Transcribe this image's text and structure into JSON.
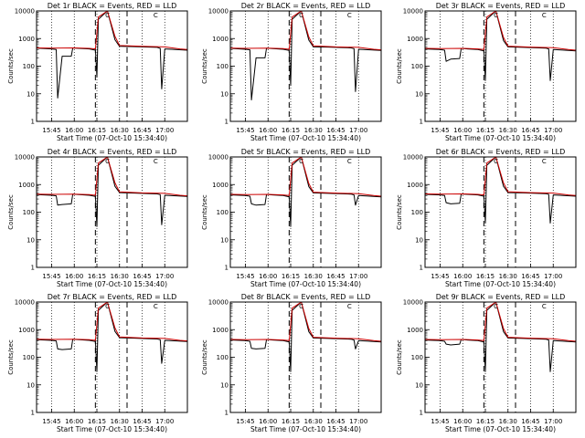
{
  "chart_data": [
    {
      "type": "line",
      "title": "Det 1r BLACK = Events, RED = LLD",
      "xlabel": "Start Time (07-Oct-10 15:34:40)",
      "ylabel": "Counts/sec",
      "y_scale": "log",
      "ylim": [
        1,
        10000
      ],
      "xlim": [
        "15:35",
        "17:15"
      ],
      "x_ticks": [
        "15:45",
        "16:00",
        "16:15",
        "16:30",
        "16:45",
        "17:00"
      ],
      "y_ticks": [
        "1",
        "10",
        "100",
        "1000",
        "10000"
      ],
      "marker": "C",
      "series": [
        {
          "color": "#000000",
          "x": [
            "15:35",
            "15:45",
            "15:48",
            "15:49",
            "15:52",
            "15:58",
            "15:59",
            "16:03",
            "16:10",
            "16:14",
            "16:15",
            "16:16",
            "16:22",
            "16:27",
            "16:30",
            "16:40",
            "16:55",
            "16:57",
            "16:58",
            "17:00",
            "17:15"
          ],
          "y": [
            450,
            420,
            400,
            7,
            230,
            230,
            460,
            440,
            420,
            380,
            40,
            5000,
            10000,
            900,
            520,
            510,
            480,
            440,
            15,
            420,
            380
          ]
        },
        {
          "color": "#cc0000",
          "x": [
            "15:35",
            "15:45",
            "16:00",
            "16:10",
            "16:14",
            "16:16",
            "16:22",
            "16:27",
            "16:30",
            "16:45",
            "17:00",
            "17:10",
            "17:15"
          ],
          "y": [
            460,
            450,
            460,
            440,
            420,
            6000,
            10000,
            1200,
            560,
            520,
            500,
            420,
            400
          ]
        }
      ]
    },
    {
      "type": "line",
      "title": "Det 2r BLACK = Events, RED = LLD",
      "xlabel": "Start Time (07-Oct-10 15:34:40)",
      "ylabel": "Counts/sec",
      "y_scale": "log",
      "ylim": [
        1,
        10000
      ],
      "xlim": [
        "15:35",
        "17:15"
      ],
      "x_ticks": [
        "15:45",
        "16:00",
        "16:15",
        "16:30",
        "16:45",
        "17:00"
      ],
      "y_ticks": [
        "1",
        "10",
        "100",
        "1000",
        "10000"
      ],
      "marker": "C",
      "series": [
        {
          "color": "#000000",
          "x": [
            "15:35",
            "15:45",
            "15:48",
            "15:49",
            "15:52",
            "15:58",
            "15:59",
            "16:03",
            "16:10",
            "16:14",
            "16:15",
            "16:16",
            "16:22",
            "16:27",
            "16:30",
            "16:40",
            "16:55",
            "16:57",
            "16:58",
            "17:00",
            "17:15"
          ],
          "y": [
            440,
            410,
            390,
            6,
            200,
            200,
            450,
            430,
            410,
            370,
            20,
            5000,
            10000,
            880,
            500,
            490,
            460,
            430,
            12,
            410,
            370
          ]
        },
        {
          "color": "#cc0000",
          "x": [
            "15:35",
            "15:45",
            "16:00",
            "16:10",
            "16:14",
            "16:16",
            "16:22",
            "16:27",
            "16:30",
            "16:45",
            "17:00",
            "17:10",
            "17:15"
          ],
          "y": [
            450,
            440,
            450,
            430,
            410,
            6000,
            10000,
            1150,
            540,
            500,
            480,
            410,
            390
          ]
        }
      ]
    },
    {
      "type": "line",
      "title": "Det 3r BLACK = Events, RED = LLD",
      "xlabel": "Start Time (07-Oct-10 15:34:40)",
      "ylabel": "Counts/sec",
      "y_scale": "log",
      "ylim": [
        1,
        10000
      ],
      "xlim": [
        "15:35",
        "17:15"
      ],
      "x_ticks": [
        "15:45",
        "16:00",
        "16:15",
        "16:30",
        "16:45",
        "17:00"
      ],
      "y_ticks": [
        "1",
        "10",
        "100",
        "1000",
        "10000"
      ],
      "marker": "C",
      "series": [
        {
          "color": "#000000",
          "x": [
            "15:35",
            "15:45",
            "15:48",
            "15:49",
            "15:52",
            "15:58",
            "15:59",
            "16:03",
            "16:10",
            "16:14",
            "16:15",
            "16:16",
            "16:22",
            "16:27",
            "16:30",
            "16:40",
            "16:55",
            "16:57",
            "16:58",
            "17:00",
            "17:15"
          ],
          "y": [
            420,
            400,
            380,
            150,
            180,
            190,
            440,
            420,
            400,
            360,
            30,
            5000,
            10000,
            850,
            500,
            480,
            450,
            420,
            30,
            400,
            360
          ]
        },
        {
          "color": "#cc0000",
          "x": [
            "15:35",
            "15:45",
            "16:00",
            "16:10",
            "16:14",
            "16:16",
            "16:22",
            "16:27",
            "16:30",
            "16:45",
            "17:00",
            "17:10",
            "17:15"
          ],
          "y": [
            440,
            430,
            440,
            420,
            400,
            6000,
            10000,
            1100,
            530,
            490,
            470,
            400,
            380
          ]
        }
      ]
    },
    {
      "type": "line",
      "title": "Det 4r BLACK = Events, RED = LLD",
      "xlabel": "Start Time (07-Oct-10 15:34:40)",
      "ylabel": "Counts/sec",
      "y_scale": "log",
      "ylim": [
        1,
        10000
      ],
      "xlim": [
        "15:35",
        "17:15"
      ],
      "x_ticks": [
        "15:45",
        "16:00",
        "16:15",
        "16:30",
        "16:45",
        "17:00"
      ],
      "y_ticks": [
        "1",
        "10",
        "100",
        "1000",
        "10000"
      ],
      "marker": "C",
      "series": [
        {
          "color": "#000000",
          "x": [
            "15:35",
            "15:45",
            "15:48",
            "15:49",
            "15:52",
            "15:58",
            "15:59",
            "16:03",
            "16:10",
            "16:14",
            "16:15",
            "16:16",
            "16:22",
            "16:27",
            "16:30",
            "16:40",
            "16:55",
            "16:57",
            "16:58",
            "17:00",
            "17:15"
          ],
          "y": [
            430,
            410,
            390,
            180,
            190,
            200,
            450,
            430,
            410,
            370,
            30,
            5000,
            10000,
            860,
            510,
            490,
            460,
            430,
            35,
            410,
            370
          ]
        },
        {
          "color": "#cc0000",
          "x": [
            "15:35",
            "15:45",
            "16:00",
            "16:10",
            "16:14",
            "16:16",
            "16:22",
            "16:27",
            "16:30",
            "16:45",
            "17:00",
            "17:10",
            "17:15"
          ],
          "y": [
            450,
            440,
            450,
            430,
            410,
            6000,
            10000,
            1150,
            540,
            500,
            480,
            410,
            390
          ]
        }
      ]
    },
    {
      "type": "line",
      "title": "Det 5r BLACK = Events, RED = LLD",
      "xlabel": "Start Time (07-Oct-10 15:34:40)",
      "ylabel": "Counts/sec",
      "y_scale": "log",
      "ylim": [
        1,
        10000
      ],
      "xlim": [
        "15:35",
        "17:15"
      ],
      "x_ticks": [
        "15:45",
        "16:00",
        "16:15",
        "16:30",
        "16:45",
        "17:00"
      ],
      "y_ticks": [
        "1",
        "10",
        "100",
        "1000",
        "10000"
      ],
      "marker": "C",
      "series": [
        {
          "color": "#000000",
          "x": [
            "15:35",
            "15:45",
            "15:48",
            "15:49",
            "15:52",
            "15:58",
            "15:59",
            "16:03",
            "16:10",
            "16:14",
            "16:15",
            "16:16",
            "16:22",
            "16:27",
            "16:30",
            "16:40",
            "16:55",
            "16:57",
            "16:58",
            "17:00",
            "17:15"
          ],
          "y": [
            420,
            400,
            380,
            200,
            180,
            190,
            440,
            420,
            400,
            360,
            30,
            5000,
            10000,
            850,
            500,
            480,
            450,
            420,
            180,
            400,
            360
          ]
        },
        {
          "color": "#cc0000",
          "x": [
            "15:35",
            "15:45",
            "16:00",
            "16:10",
            "16:14",
            "16:16",
            "16:22",
            "16:27",
            "16:30",
            "16:45",
            "17:00",
            "17:10",
            "17:15"
          ],
          "y": [
            440,
            430,
            440,
            420,
            400,
            6000,
            10000,
            1100,
            530,
            490,
            470,
            400,
            380
          ]
        }
      ]
    },
    {
      "type": "line",
      "title": "Det 6r BLACK = Events, RED = LLD",
      "xlabel": "Start Time (07-Oct-10 15:34:40)",
      "ylabel": "Counts/sec",
      "y_scale": "log",
      "ylim": [
        1,
        10000
      ],
      "xlim": [
        "15:35",
        "17:15"
      ],
      "x_ticks": [
        "15:45",
        "16:00",
        "16:15",
        "16:30",
        "16:45",
        "17:00"
      ],
      "y_ticks": [
        "1",
        "10",
        "100",
        "1000",
        "10000"
      ],
      "marker": "C",
      "series": [
        {
          "color": "#000000",
          "x": [
            "15:35",
            "15:45",
            "15:48",
            "15:49",
            "15:52",
            "15:58",
            "15:59",
            "16:03",
            "16:10",
            "16:14",
            "16:15",
            "16:16",
            "16:22",
            "16:27",
            "16:30",
            "16:40",
            "16:55",
            "16:57",
            "16:58",
            "17:00",
            "17:15"
          ],
          "y": [
            440,
            420,
            400,
            220,
            200,
            210,
            460,
            440,
            420,
            380,
            40,
            5000,
            10000,
            870,
            510,
            500,
            470,
            440,
            40,
            420,
            380
          ]
        },
        {
          "color": "#cc0000",
          "x": [
            "15:35",
            "15:45",
            "16:00",
            "16:10",
            "16:14",
            "16:16",
            "16:22",
            "16:27",
            "16:30",
            "16:45",
            "17:00",
            "17:10",
            "17:15"
          ],
          "y": [
            460,
            450,
            460,
            440,
            420,
            6000,
            10000,
            1150,
            550,
            510,
            490,
            420,
            400
          ]
        }
      ]
    },
    {
      "type": "line",
      "title": "Det 7r BLACK = Events, RED = LLD",
      "xlabel": "Start Time (07-Oct-10 15:34:40)",
      "ylabel": "Counts/sec",
      "y_scale": "log",
      "ylim": [
        1,
        10000
      ],
      "xlim": [
        "15:35",
        "17:15"
      ],
      "x_ticks": [
        "15:45",
        "16:00",
        "16:15",
        "16:30",
        "16:45",
        "17:00"
      ],
      "y_ticks": [
        "1",
        "10",
        "100",
        "1000",
        "10000"
      ],
      "marker": "C",
      "series": [
        {
          "color": "#000000",
          "x": [
            "15:35",
            "15:45",
            "15:48",
            "15:49",
            "15:52",
            "15:58",
            "15:59",
            "16:03",
            "16:10",
            "16:14",
            "16:15",
            "16:16",
            "16:22",
            "16:27",
            "16:30",
            "16:40",
            "16:55",
            "16:57",
            "16:58",
            "17:00",
            "17:15"
          ],
          "y": [
            430,
            410,
            390,
            200,
            190,
            200,
            450,
            430,
            410,
            370,
            30,
            5000,
            10000,
            860,
            510,
            490,
            460,
            430,
            60,
            410,
            370
          ]
        },
        {
          "color": "#cc0000",
          "x": [
            "15:35",
            "15:45",
            "16:00",
            "16:10",
            "16:14",
            "16:16",
            "16:22",
            "16:27",
            "16:30",
            "16:45",
            "17:00",
            "17:10",
            "17:15"
          ],
          "y": [
            450,
            440,
            450,
            430,
            410,
            6000,
            10000,
            1150,
            540,
            500,
            480,
            410,
            390
          ]
        }
      ]
    },
    {
      "type": "line",
      "title": "Det 8r BLACK = Events, RED = LLD",
      "xlabel": "Start Time (07-Oct-10 15:34:40)",
      "ylabel": "Counts/sec",
      "y_scale": "log",
      "ylim": [
        1,
        10000
      ],
      "xlim": [
        "15:35",
        "17:15"
      ],
      "x_ticks": [
        "15:45",
        "16:00",
        "16:15",
        "16:30",
        "16:45",
        "17:00"
      ],
      "y_ticks": [
        "1",
        "10",
        "100",
        "1000",
        "10000"
      ],
      "marker": "C",
      "series": [
        {
          "color": "#000000",
          "x": [
            "15:35",
            "15:45",
            "15:48",
            "15:49",
            "15:52",
            "15:58",
            "15:59",
            "16:03",
            "16:10",
            "16:14",
            "16:15",
            "16:16",
            "16:22",
            "16:27",
            "16:30",
            "16:40",
            "16:55",
            "16:57",
            "16:58",
            "17:00",
            "17:15"
          ],
          "y": [
            420,
            400,
            380,
            210,
            200,
            210,
            440,
            420,
            400,
            360,
            30,
            5000,
            10000,
            850,
            500,
            480,
            450,
            420,
            200,
            400,
            360
          ]
        },
        {
          "color": "#cc0000",
          "x": [
            "15:35",
            "15:45",
            "16:00",
            "16:10",
            "16:14",
            "16:16",
            "16:22",
            "16:27",
            "16:30",
            "16:45",
            "17:00",
            "17:10",
            "17:15"
          ],
          "y": [
            440,
            430,
            440,
            420,
            400,
            6000,
            10000,
            1100,
            530,
            490,
            470,
            400,
            380
          ]
        }
      ]
    },
    {
      "type": "line",
      "title": "Det 9r BLACK = Events, RED = LLD",
      "xlabel": "Start Time (07-Oct-10 15:34:40)",
      "ylabel": "Counts/sec",
      "y_scale": "log",
      "ylim": [
        1,
        10000
      ],
      "xlim": [
        "15:35",
        "17:15"
      ],
      "x_ticks": [
        "15:45",
        "16:00",
        "16:15",
        "16:30",
        "16:45",
        "17:00"
      ],
      "y_ticks": [
        "1",
        "10",
        "100",
        "1000",
        "10000"
      ],
      "marker": "C",
      "series": [
        {
          "color": "#000000",
          "x": [
            "15:35",
            "15:45",
            "15:48",
            "15:49",
            "15:52",
            "15:58",
            "15:59",
            "16:03",
            "16:10",
            "16:14",
            "16:15",
            "16:16",
            "16:22",
            "16:27",
            "16:30",
            "16:40",
            "16:55",
            "16:57",
            "16:58",
            "17:00",
            "17:15"
          ],
          "y": [
            420,
            400,
            380,
            300,
            280,
            300,
            440,
            420,
            400,
            360,
            30,
            5000,
            10000,
            850,
            500,
            480,
            450,
            420,
            30,
            400,
            360
          ]
        },
        {
          "color": "#cc0000",
          "x": [
            "15:35",
            "15:45",
            "16:00",
            "16:10",
            "16:14",
            "16:16",
            "16:22",
            "16:27",
            "16:30",
            "16:45",
            "17:00",
            "17:10",
            "17:15"
          ],
          "y": [
            440,
            430,
            440,
            420,
            400,
            6000,
            10000,
            1100,
            530,
            490,
            470,
            400,
            380
          ]
        }
      ]
    }
  ]
}
